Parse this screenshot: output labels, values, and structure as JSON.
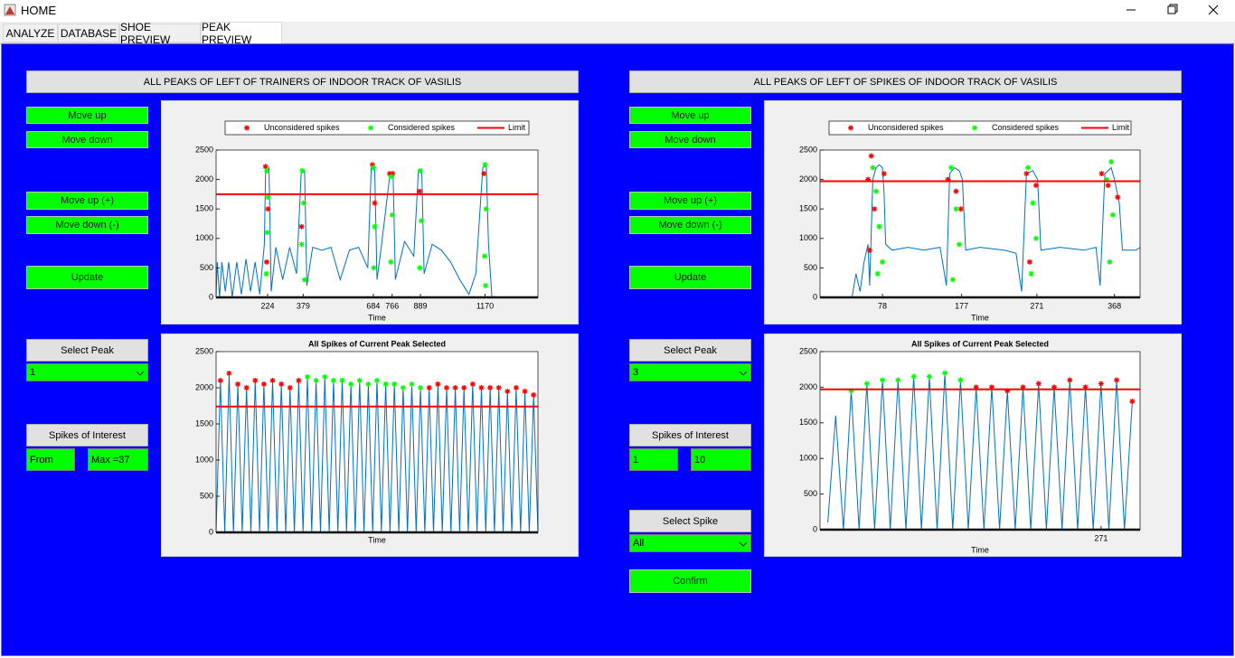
{
  "window": {
    "title": "HOME"
  },
  "tabs": [
    "ANALYZE",
    "DATABASE",
    "SHOE PREVIEW",
    "PEAK PREVIEW"
  ],
  "left": {
    "header": "ALL PEAKS OF LEFT OF TRAINERS OF INDOOR TRACK OF VASILIS",
    "buttons": [
      "Move up",
      "Move down",
      "Move up (+)",
      "Move down (-)",
      "Update"
    ],
    "select_peak": {
      "label": "Select Peak",
      "value": "1"
    },
    "spikes_of_interest": {
      "label": "Spikes of Interest",
      "from": "From",
      "to": "Max =37"
    },
    "top_chart": {
      "type": "line",
      "xlabel": "Time",
      "xlim": [
        0,
        1400
      ],
      "ylim": [
        0,
        2500
      ],
      "xticks": [
        224,
        379,
        684,
        766,
        889,
        1170
      ],
      "yticks": [
        0,
        500,
        1000,
        1500,
        2000,
        2500
      ],
      "series": [
        {
          "style": "line",
          "color": "#0072bd",
          "x": [
            0,
            5,
            15,
            25,
            40,
            55,
            70,
            90,
            110,
            130,
            150,
            170,
            190,
            210,
            215,
            230,
            240,
            260,
            290,
            320,
            350,
            370,
            385,
            395,
            420,
            460,
            500,
            540,
            580,
            620,
            660,
            675,
            690,
            700,
            720,
            755,
            770,
            780,
            820,
            860,
            880,
            895,
            905,
            940,
            980,
            1020,
            1060,
            1100,
            1130,
            1160,
            1175,
            1185,
            1200,
            1400
          ],
          "values": [
            0,
            600,
            0,
            600,
            100,
            600,
            0,
            600,
            50,
            650,
            100,
            600,
            50,
            900,
            2100,
            2200,
            100,
            850,
            300,
            850,
            400,
            2100,
            2150,
            200,
            850,
            800,
            850,
            300,
            800,
            850,
            500,
            2200,
            2150,
            300,
            900,
            2050,
            2100,
            300,
            950,
            700,
            2150,
            2100,
            400,
            900,
            800,
            600,
            300,
            50,
            400,
            2200,
            2250,
            900,
            0,
            0
          ]
        },
        {
          "name": "Unconsidered spikes",
          "style": "star",
          "color": "#ff0000",
          "x": [
            215,
            226,
            220,
            372,
            680,
            690,
            755,
            768,
            885,
            1165
          ],
          "values": [
            2220,
            1500,
            600,
            1200,
            2250,
            1600,
            2100,
            2100,
            1800,
            2100
          ]
        },
        {
          "name": "Considered spikes",
          "style": "star",
          "color": "#00ff00",
          "x": [
            220,
            226,
            222,
            218,
            375,
            380,
            372,
            385,
            684,
            690,
            686,
            762,
            766,
            760,
            889,
            893,
            886,
            1170,
            1174,
            1168,
            1172
          ],
          "values": [
            2150,
            1700,
            1100,
            400,
            2150,
            1600,
            900,
            300,
            2200,
            1200,
            500,
            2050,
            1400,
            600,
            2150,
            1300,
            500,
            2250,
            1500,
            700,
            200
          ]
        },
        {
          "name": "Limit",
          "style": "hline",
          "color": "#ff0000",
          "value": 1750
        }
      ]
    },
    "bottom_chart": {
      "type": "line",
      "title": "All Spikes of Current Peak Selected",
      "xlabel": "Time",
      "xlim": [
        0,
        74
      ],
      "ylim": [
        0,
        2500
      ],
      "xticks": [],
      "yticks": [
        0,
        500,
        1000,
        1500,
        2000,
        2500
      ],
      "series": [
        {
          "style": "line",
          "color": "#0072bd",
          "x": [
            0,
            1,
            2,
            3,
            4,
            5,
            6,
            7,
            8,
            9,
            10,
            11,
            12,
            13,
            14,
            15,
            16,
            17,
            18,
            19,
            20,
            21,
            22,
            23,
            24,
            25,
            26,
            27,
            28,
            29,
            30,
            31,
            32,
            33,
            34,
            35,
            36,
            37,
            38,
            39,
            40,
            41,
            42,
            43,
            44,
            45,
            46,
            47,
            48,
            49,
            50,
            51,
            52,
            53,
            54,
            55,
            56,
            57,
            58,
            59,
            60,
            61,
            62,
            63,
            64,
            65,
            66,
            67,
            68,
            69,
            70,
            71,
            72,
            73,
            74
          ],
          "values": [
            0,
            2100,
            0,
            2200,
            0,
            2050,
            0,
            2000,
            0,
            2100,
            0,
            2050,
            0,
            2100,
            0,
            2050,
            0,
            2000,
            0,
            2100,
            0,
            2150,
            0,
            2100,
            0,
            2150,
            0,
            2100,
            0,
            2100,
            0,
            2050,
            0,
            2100,
            0,
            2050,
            0,
            2100,
            0,
            2050,
            0,
            2050,
            0,
            2000,
            0,
            2050,
            0,
            2000,
            0,
            2000,
            0,
            2050,
            0,
            2000,
            0,
            2000,
            0,
            2000,
            0,
            2050,
            0,
            2000,
            0,
            2000,
            0,
            2000,
            0,
            1950,
            0,
            2000,
            0,
            1950,
            0,
            1900,
            0
          ]
        },
        {
          "style": "star",
          "color": "#ff0000",
          "x": [
            1,
            3,
            5,
            7,
            9,
            11,
            13,
            15,
            17,
            19,
            49,
            51,
            53,
            55,
            57,
            59,
            61,
            63,
            65,
            67,
            69,
            71,
            73
          ],
          "values": [
            2100,
            2200,
            2050,
            2000,
            2100,
            2050,
            2100,
            2050,
            2000,
            2100,
            2000,
            2050,
            2000,
            2000,
            2000,
            2050,
            2000,
            2000,
            2000,
            1950,
            2000,
            1950,
            1900
          ]
        },
        {
          "style": "star",
          "color": "#00ff00",
          "x": [
            21,
            23,
            25,
            27,
            29,
            31,
            33,
            35,
            37,
            39,
            41,
            43,
            45,
            47
          ],
          "values": [
            2150,
            2100,
            2150,
            2100,
            2100,
            2050,
            2100,
            2050,
            2100,
            2050,
            2050,
            2000,
            2050,
            2000
          ]
        },
        {
          "style": "hline",
          "color": "#ff0000",
          "value": 1740
        }
      ]
    }
  },
  "right": {
    "header": "ALL PEAKS OF LEFT OF SPIKES OF INDOOR TRACK OF VASILIS",
    "buttons": [
      "Move up",
      "Move down",
      "Move up (+)",
      "Move down (-)",
      "Update"
    ],
    "select_peak": {
      "label": "Select Peak",
      "value": "3"
    },
    "spikes_of_interest": {
      "label": "Spikes of Interest",
      "from": "1",
      "to": "10"
    },
    "select_spike": {
      "label": "Select Spike",
      "value": "All"
    },
    "confirm": "Confirm",
    "top_chart": {
      "type": "line",
      "xlabel": "Time",
      "xlim": [
        0,
        400
      ],
      "ylim": [
        0,
        2500
      ],
      "xticks": [
        78,
        177,
        271,
        368
      ],
      "yticks": [
        0,
        500,
        1000,
        1500,
        2000,
        2500
      ],
      "series": [
        {
          "style": "line",
          "color": "#0072bd",
          "x": [
            0,
            20,
            40,
            45,
            50,
            55,
            60,
            62,
            66,
            70,
            74,
            78,
            80,
            82,
            90,
            110,
            130,
            150,
            158,
            162,
            168,
            174,
            178,
            182,
            200,
            230,
            245,
            252,
            258,
            266,
            272,
            276,
            300,
            330,
            345,
            350,
            356,
            364,
            368,
            374,
            378,
            395,
            400
          ],
          "values": [
            0,
            0,
            0,
            400,
            100,
            600,
            900,
            200,
            2000,
            2200,
            2250,
            2200,
            1800,
            900,
            800,
            850,
            800,
            850,
            200,
            2100,
            2200,
            2150,
            2000,
            800,
            850,
            800,
            750,
            100,
            2100,
            2150,
            2000,
            800,
            850,
            800,
            850,
            200,
            2100,
            2200,
            2000,
            1600,
            800,
            800,
            850
          ]
        },
        {
          "name": "Unconsidered spikes",
          "style": "star",
          "color": "#ff0000",
          "x": [
            60,
            64,
            68,
            80,
            62,
            160,
            170,
            176,
            258,
            270,
            262,
            352,
            360,
            372
          ],
          "values": [
            2000,
            2400,
            1500,
            2100,
            800,
            2000,
            1800,
            1500,
            2100,
            1900,
            600,
            2100,
            1900,
            1700
          ]
        },
        {
          "name": "Considered spikes",
          "style": "star",
          "color": "#00ff00",
          "x": [
            66,
            70,
            74,
            78,
            72,
            164,
            170,
            174,
            166,
            260,
            266,
            270,
            264,
            358,
            364,
            366,
            362
          ],
          "values": [
            2200,
            1800,
            1200,
            600,
            400,
            2200,
            1500,
            900,
            300,
            2200,
            1600,
            1000,
            400,
            2000,
            2300,
            1400,
            600
          ]
        },
        {
          "name": "Limit",
          "style": "hline",
          "color": "#ff0000",
          "value": 1970
        }
      ]
    },
    "bottom_chart": {
      "type": "line",
      "title": "All Spikes of Current Peak Selected",
      "xlabel": "Time",
      "xlim": [
        235,
        276
      ],
      "ylim": [
        0,
        2500
      ],
      "xticks": [
        271
      ],
      "yticks": [
        0,
        500,
        1000,
        1500,
        2000,
        2500
      ],
      "series": [
        {
          "style": "line",
          "color": "#0072bd",
          "x": [
            236,
            237,
            238,
            239,
            240,
            241,
            242,
            243,
            244,
            245,
            246,
            247,
            248,
            249,
            250,
            251,
            252,
            253,
            254,
            255,
            256,
            257,
            258,
            259,
            260,
            261,
            262,
            263,
            264,
            265,
            266,
            267,
            268,
            269,
            270,
            271,
            272,
            273,
            274,
            275
          ],
          "values": [
            100,
            1600,
            0,
            1950,
            0,
            2050,
            0,
            2100,
            0,
            2100,
            0,
            2150,
            0,
            2150,
            0,
            2200,
            0,
            2100,
            0,
            2000,
            0,
            2000,
            0,
            1950,
            0,
            2000,
            0,
            2050,
            0,
            2000,
            0,
            2100,
            0,
            2000,
            0,
            2050,
            0,
            2100,
            0,
            1800
          ]
        },
        {
          "style": "star",
          "color": "#00ff00",
          "x": [
            239,
            241,
            243,
            245,
            247,
            249,
            251,
            253
          ],
          "values": [
            1950,
            2050,
            2100,
            2100,
            2150,
            2150,
            2200,
            2100
          ]
        },
        {
          "style": "star",
          "color": "#ff0000",
          "x": [
            255,
            257,
            259,
            261,
            263,
            265,
            267,
            269,
            271,
            273,
            275
          ],
          "values": [
            2000,
            2000,
            1950,
            2000,
            2050,
            2000,
            2100,
            2000,
            2050,
            2100,
            1800
          ]
        },
        {
          "style": "hline",
          "color": "#ff0000",
          "value": 1970
        }
      ]
    }
  }
}
